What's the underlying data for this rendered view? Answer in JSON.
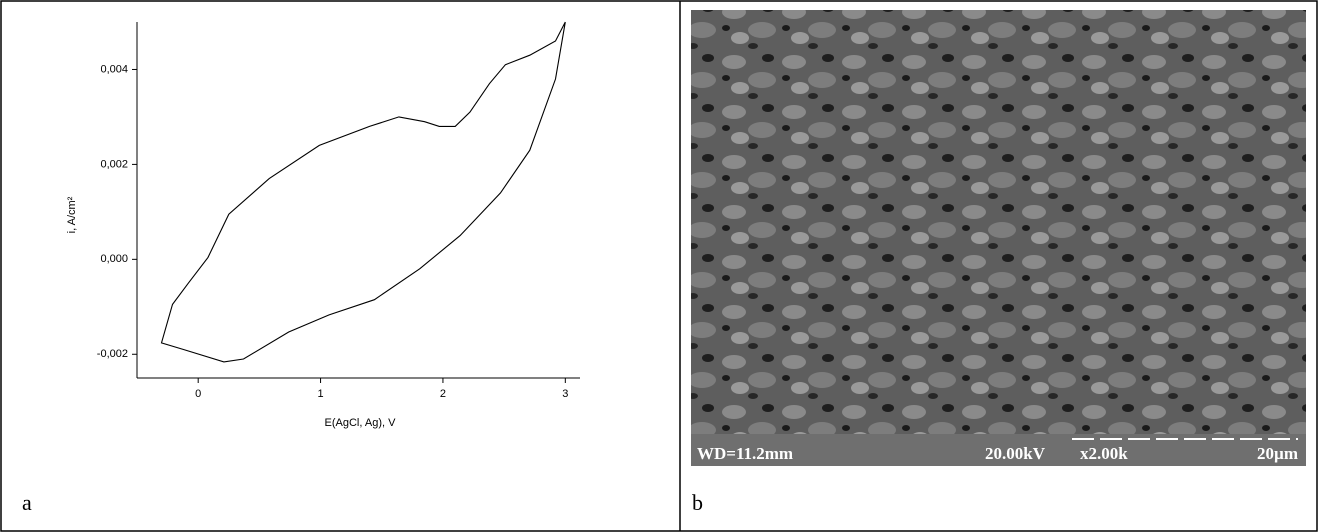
{
  "chart_data": {
    "type": "line",
    "xlabel": "E(AgCl, Ag), V",
    "ylabel": "i, A/cm²",
    "color": "#000000",
    "x": [
      3.0,
      2.92,
      2.71,
      2.51,
      2.38,
      2.22,
      2.1,
      1.97,
      1.85,
      1.64,
      1.4,
      0.99,
      0.58,
      0.25,
      0.08,
      -0.08,
      -0.21,
      -0.3,
      -0.12,
      0.21,
      0.37,
      0.74,
      1.07,
      1.44,
      1.81,
      2.14,
      2.47,
      2.71,
      2.92,
      3.0
    ],
    "values": [
      0.005,
      0.0046,
      0.0043,
      0.0041,
      0.0037,
      0.0031,
      0.0028,
      0.0028,
      0.0029,
      0.003,
      0.0028,
      0.0024,
      0.0017,
      0.00095,
      4e-05,
      -0.0005,
      -0.00095,
      -0.00176,
      -0.0019,
      -0.00216,
      -0.0021,
      -0.00153,
      -0.00117,
      -0.00085,
      -0.0002,
      0.0005,
      0.0014,
      0.0023,
      0.0038,
      0.005
    ],
    "xlim": [
      -0.5,
      3.12
    ],
    "ylim": [
      -0.0025,
      0.005
    ],
    "xticks": [
      0,
      1,
      2,
      3
    ],
    "yticks": [
      {
        "value": -0.002,
        "label": "-0,002"
      },
      {
        "value": 0,
        "label": "0,000"
      },
      {
        "value": 0.002,
        "label": "0,002"
      },
      {
        "value": 0.004,
        "label": "0,004"
      }
    ]
  },
  "panels": [
    "a",
    "b"
  ],
  "sem": {
    "wd": "WD=11.2mm",
    "voltage": "20.00kV",
    "magnification": "x2.00k",
    "scale": "20µm"
  }
}
